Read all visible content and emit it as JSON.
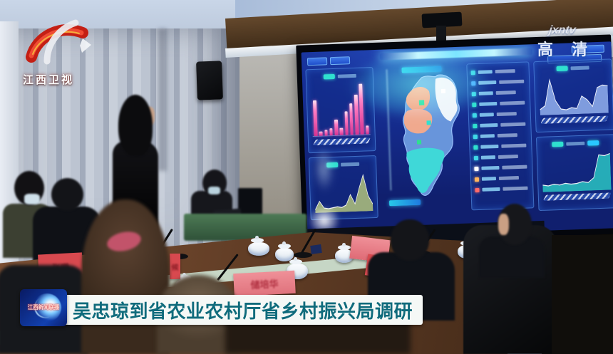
{
  "broadcast": {
    "channel_logo": "江西卫视",
    "watermark": "jxntv",
    "hd_label": "高 清",
    "news_badge_label": "江西新闻联播",
    "caption": "吴忠琼到省农业农村厅省乡村振兴局调研",
    "caption_text_color": "#0f6b7c",
    "banner_bg": "#f5f8f6"
  },
  "scene": {
    "description": "Conference room: officials at a wooden table with tea cups, microphones and red name cards watch a presenter explain a big-data dashboard on a wall LED screen",
    "name_cards": [
      {
        "text": "张曦"
      },
      {
        "text": "候"
      },
      {
        "text": "储培华"
      },
      {
        "text": ""
      },
      {
        "text": ""
      }
    ]
  },
  "dashboard": {
    "bg": "#14298a",
    "accent": "#35e0e8",
    "panel_border": "#4f8cf0",
    "bar_color": "#ff7cc2",
    "stats": {
      "rows": 12,
      "icon_colors": [
        "#3fd8e8",
        "#4aa8ff",
        "#3fd8e8",
        "#2fe0cf",
        "#3fd8e8",
        "#2fe0cf",
        "#3fd8e8",
        "#2fe0cf",
        "#3fd8e8",
        "#ffffff",
        "#ffb45e",
        "#ff6a6a"
      ]
    },
    "chart_data": [
      {
        "type": "bar",
        "panel": "left-top",
        "values": [
          68,
          8,
          11,
          13,
          30,
          14,
          44,
          60,
          76,
          96,
          16
        ],
        "color": "#ff7cc2"
      },
      {
        "type": "area",
        "panel": "left-bottom",
        "values": [
          8,
          30,
          12,
          10,
          12,
          14,
          12,
          18,
          45,
          20,
          60,
          95,
          40,
          18
        ],
        "color": "#cfdf7d"
      },
      {
        "type": "area",
        "panel": "right-top",
        "values": [
          12,
          20,
          75,
          30,
          12,
          10,
          14,
          12,
          38,
          30,
          15,
          55,
          60,
          58
        ],
        "color": "#a9c8ff"
      },
      {
        "type": "area",
        "panel": "right-bottom",
        "values": [
          14,
          12,
          15,
          13,
          16,
          14,
          15,
          18,
          16,
          25,
          70,
          68,
          72
        ],
        "color": "#2fe0cf"
      },
      {
        "type": "map",
        "region": "Jiangxi province choropleth",
        "region_colors": {
          "base": "#6d9be0",
          "northeast": "#eef4fa",
          "northwest": "#f09a6e",
          "center": "#f0a98e",
          "south": "#3fd8d8"
        },
        "marker_colors": [
          "#2fe08f",
          "#2fe0cf",
          "#ffffff"
        ]
      }
    ]
  }
}
